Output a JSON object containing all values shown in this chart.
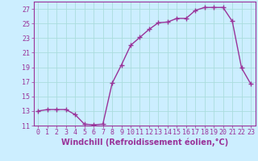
{
  "x": [
    0,
    1,
    2,
    3,
    4,
    5,
    6,
    7,
    8,
    9,
    10,
    11,
    12,
    13,
    14,
    15,
    16,
    17,
    18,
    19,
    20,
    21,
    22,
    23
  ],
  "y": [
    13,
    13.2,
    13.2,
    13.2,
    12.5,
    11.2,
    11.1,
    11.2,
    16.8,
    19.3,
    22.0,
    23.1,
    24.2,
    25.1,
    25.2,
    25.7,
    25.7,
    26.8,
    27.2,
    27.2,
    27.2,
    25.3,
    18.9,
    16.7
  ],
  "line_color": "#993399",
  "marker": "+",
  "marker_size": 4,
  "bg_color": "#cceeff",
  "grid_color": "#aadddd",
  "xlabel": "Windchill (Refroidissement éolien,°C)",
  "xlabel_color": "#993399",
  "tick_color": "#993399",
  "ylim": [
    11,
    28
  ],
  "xlim": [
    -0.5,
    23.5
  ],
  "yticks": [
    11,
    13,
    15,
    17,
    19,
    21,
    23,
    25,
    27
  ],
  "xticks": [
    0,
    1,
    2,
    3,
    4,
    5,
    6,
    7,
    8,
    9,
    10,
    11,
    12,
    13,
    14,
    15,
    16,
    17,
    18,
    19,
    20,
    21,
    22,
    23
  ],
  "font_size": 6,
  "xlabel_font_size": 7,
  "line_width": 1.0
}
